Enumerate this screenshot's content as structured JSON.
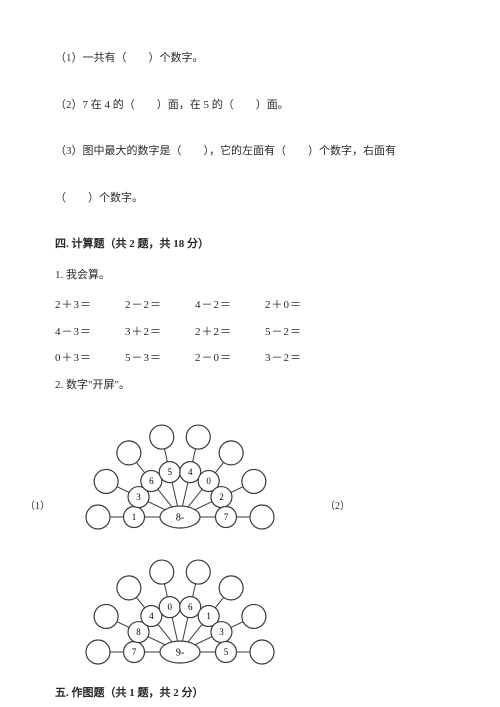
{
  "q1": {
    "text": "（1）一共有（　　）个数字。"
  },
  "q2": {
    "text": "（2）7 在 4 的（　　）面，在 5 的（　　）面。"
  },
  "q3a": {
    "text": "（3）图中最大的数字是（　　），它的左面有（　　）个数字，右面有"
  },
  "q3b": {
    "text": "（　　）个数字。"
  },
  "section4": {
    "title": "四. 计算题（共 2 题，共 18 分）"
  },
  "calc": {
    "title": "1. 我会算。",
    "rows": [
      [
        "2＋3＝",
        "2－2＝",
        "4－2＝",
        "2＋0＝"
      ],
      [
        "4－3＝",
        "3＋2＝",
        "2＋2＝",
        "5－2＝"
      ],
      [
        "0＋3＝",
        "5－3＝",
        "2－0＝",
        "3－2＝"
      ]
    ]
  },
  "fan": {
    "title": "2. 数字\"开屏\"。",
    "label1": "（1）",
    "label2": "（2）",
    "diagram1": {
      "center": "8-",
      "inner": [
        "1",
        "3",
        "6",
        "5",
        "4",
        "0",
        "2",
        "7"
      ],
      "stroke": "#3a3a3a",
      "fill": "#ffffff",
      "fontsize": 9
    },
    "diagram2": {
      "center": "9-",
      "inner": [
        "7",
        "8",
        "4",
        "0",
        "6",
        "1",
        "3",
        "5"
      ],
      "stroke": "#3a3a3a",
      "fill": "#ffffff",
      "fontsize": 9
    }
  },
  "section5": {
    "title": "五. 作图题（共 1 题，共 2 分）"
  }
}
